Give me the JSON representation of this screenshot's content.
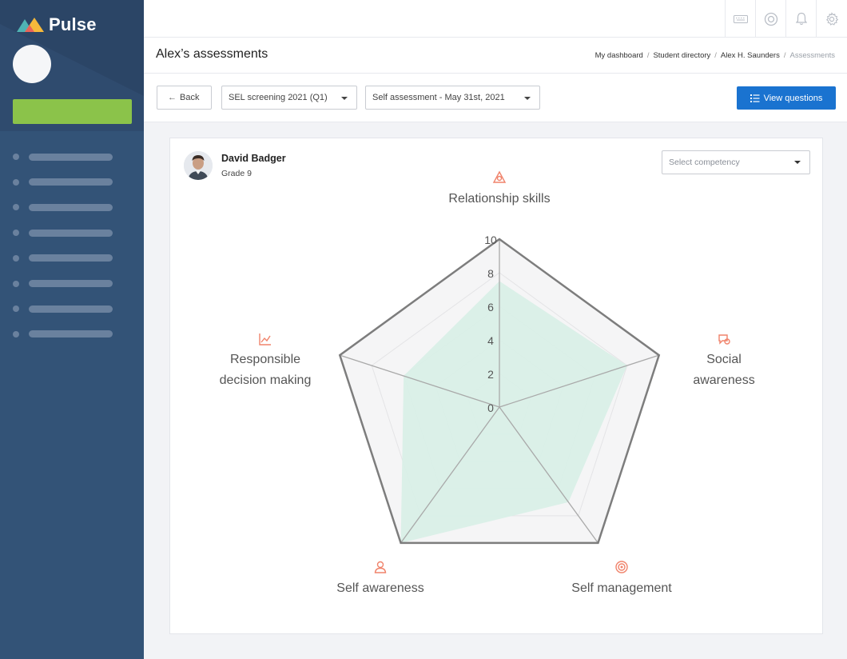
{
  "app": {
    "name": "Pulse"
  },
  "topbar": {
    "icons": [
      "keyboard-icon",
      "support-icon",
      "bell-icon",
      "settings-icon"
    ]
  },
  "header": {
    "title": "Alex’s assessments",
    "breadcrumb": [
      "My dashboard",
      "Student directory",
      "Alex H. Saunders",
      "Assessments"
    ]
  },
  "toolbar": {
    "back_label": "Back",
    "screening_select": "SEL screening 2021 (Q1)",
    "assessment_select": "Self assessment - May 31st, 2021",
    "view_questions_label": "View questions"
  },
  "student": {
    "name": "David Badger",
    "grade": "Grade 9"
  },
  "competency_select": {
    "placeholder": "Select competency"
  },
  "colors": {
    "accent": "#1a73d0",
    "sidebar": "#335377",
    "icon_accent": "#f0836b",
    "fill": "#d8efe7"
  },
  "chart_data": {
    "type": "radar",
    "axes": [
      "Relationship skills",
      "Social awareness",
      "Self management",
      "Self awareness",
      "Responsible decision making"
    ],
    "label_lines": [
      [
        "Relationship skills"
      ],
      [
        "Social",
        "awareness"
      ],
      [
        "Self management"
      ],
      [
        "Self awareness"
      ],
      [
        "Responsible",
        "decision making"
      ]
    ],
    "ticks": [
      "0",
      "2",
      "4",
      "6",
      "8",
      "10"
    ],
    "range": [
      0,
      10
    ],
    "values": [
      7.5,
      8.0,
      7.0,
      10.0,
      6.0
    ]
  }
}
